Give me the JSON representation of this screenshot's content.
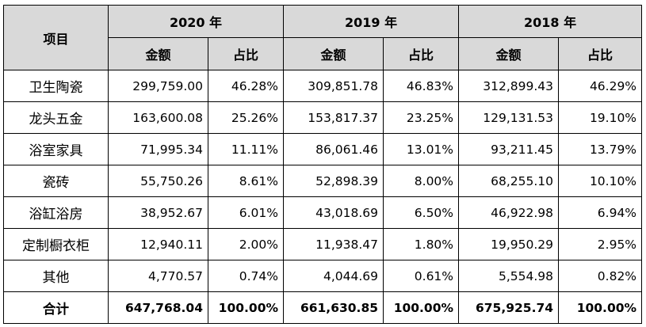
{
  "header": {
    "item_label": "项目",
    "years": [
      "2020 年",
      "2019 年",
      "2018 年"
    ],
    "amount_label": "金额",
    "ratio_label": "占比"
  },
  "rows": [
    {
      "category": "卫生陶瓷",
      "values": [
        "299,759.00",
        "46.28%",
        "309,851.78",
        "46.83%",
        "312,899.43",
        "46.29%"
      ]
    },
    {
      "category": "龙头五金",
      "values": [
        "163,600.08",
        "25.26%",
        "153,817.37",
        "23.25%",
        "129,131.53",
        "19.10%"
      ]
    },
    {
      "category": "浴室家具",
      "values": [
        "71,995.34",
        "11.11%",
        "86,061.46",
        "13.01%",
        "93,211.45",
        "13.79%"
      ]
    },
    {
      "category": "瓷砖",
      "values": [
        "55,750.26",
        "8.61%",
        "52,898.39",
        "8.00%",
        "68,255.10",
        "10.10%"
      ]
    },
    {
      "category": "浴缸浴房",
      "values": [
        "38,952.67",
        "6.01%",
        "43,018.69",
        "6.50%",
        "46,922.98",
        "6.94%"
      ]
    },
    {
      "category": "定制橱衣柜",
      "values": [
        "12,940.11",
        "2.00%",
        "11,938.47",
        "1.80%",
        "19,950.29",
        "2.95%"
      ]
    },
    {
      "category": "其他",
      "values": [
        "4,770.57",
        "0.74%",
        "4,044.69",
        "0.61%",
        "5,554.98",
        "0.82%"
      ]
    }
  ],
  "total": {
    "category": "合计",
    "values": [
      "647,768.04",
      "100.00%",
      "661,630.85",
      "100.00%",
      "675,925.74",
      "100.00%"
    ]
  }
}
